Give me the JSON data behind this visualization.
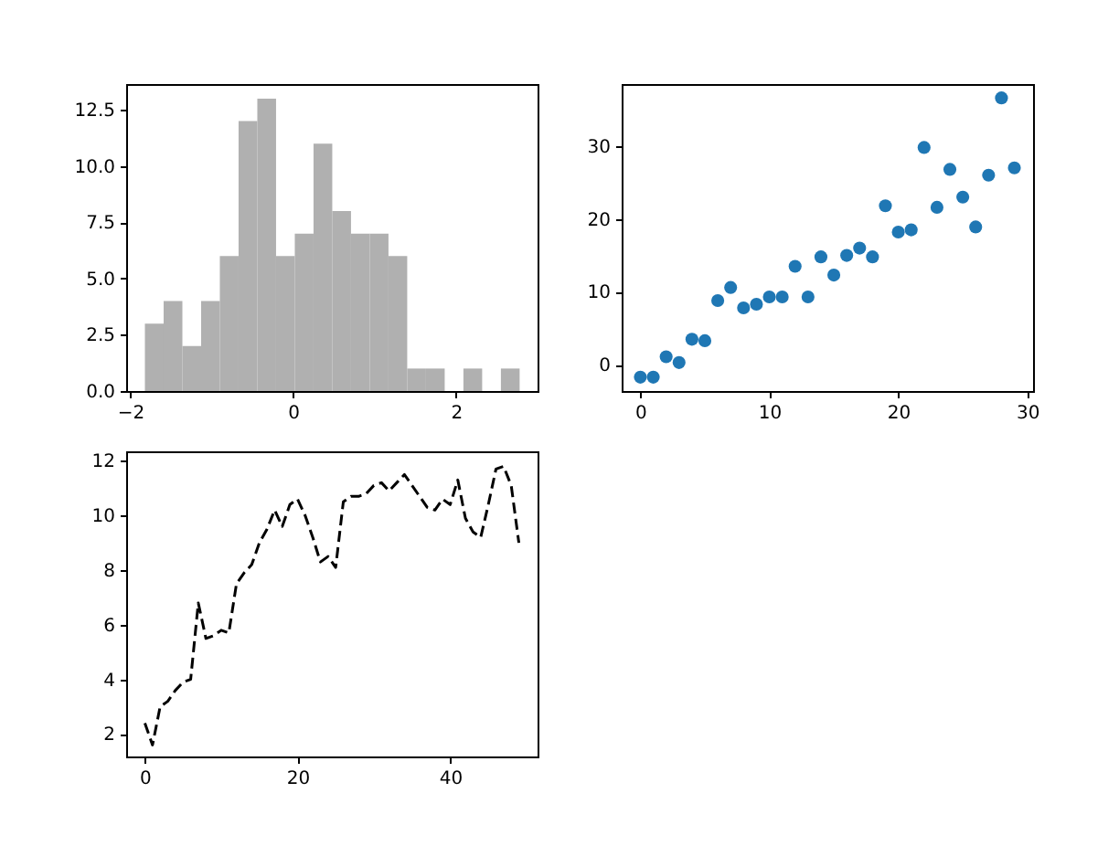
{
  "chart_data": [
    {
      "type": "histogram",
      "color": "#b0b0b0",
      "bins": [
        -1.82,
        -1.59,
        -1.36,
        -1.13,
        -0.9,
        -0.67,
        -0.44,
        -0.21,
        0.02,
        0.25,
        0.48,
        0.71,
        0.94,
        1.17,
        1.4,
        1.63,
        1.86,
        2.09,
        2.32,
        2.55,
        2.78
      ],
      "values": [
        3,
        4,
        2,
        4,
        6,
        12,
        13,
        6,
        7,
        11,
        8,
        7,
        7,
        6,
        1,
        1,
        0,
        1,
        0,
        1
      ],
      "xlim": [
        -2.05,
        3.0
      ],
      "xticks": [
        {
          "value": -2,
          "label": "−2"
        },
        0,
        2
      ],
      "ylim": [
        0,
        13.65
      ],
      "yticks": [
        {
          "value": 0,
          "label": "0.0"
        },
        {
          "value": 2.5,
          "label": "2.5"
        },
        {
          "value": 5,
          "label": "5.0"
        },
        {
          "value": 7.5,
          "label": "7.5"
        },
        {
          "value": 10,
          "label": "10.0"
        },
        {
          "value": 12.5,
          "label": "12.5"
        }
      ]
    },
    {
      "type": "scatter",
      "marker": "circle",
      "x": [
        0,
        1,
        2,
        3,
        4,
        5,
        6,
        7,
        8,
        9,
        10,
        11,
        12,
        13,
        14,
        15,
        16,
        17,
        18,
        19,
        20,
        21,
        22,
        23,
        24,
        25,
        26,
        27,
        28,
        29
      ],
      "series": [
        {
          "color": "#1f77b4",
          "values": [
            -1.7,
            -1.7,
            1.1,
            0.3,
            3.5,
            3.3,
            8.8,
            10.6,
            7.8,
            8.3,
            9.3,
            9.3,
            13.5,
            9.3,
            14.8,
            12.3,
            15,
            16,
            14.8,
            21.8,
            18.2,
            18.5,
            29.8,
            21.6,
            26.8,
            23,
            18.9,
            26,
            36.6,
            27
          ]
        }
      ],
      "xlim": [
        -1.45,
        30.45
      ],
      "xticks": [
        0,
        10,
        20,
        30
      ],
      "ylim": [
        -3.6,
        38.5
      ],
      "yticks": [
        0,
        10,
        20,
        30
      ]
    },
    {
      "type": "line",
      "line_style": "dashed",
      "x": [
        0,
        1,
        2,
        3,
        4,
        5,
        6,
        7,
        8,
        9,
        10,
        11,
        12,
        13,
        14,
        15,
        16,
        17,
        18,
        19,
        20,
        21,
        22,
        23,
        24,
        25,
        26,
        27,
        28,
        29,
        30,
        31,
        32,
        33,
        34,
        35,
        36,
        37,
        38,
        39,
        40,
        41,
        42,
        43,
        44,
        45,
        46,
        47,
        48,
        49
      ],
      "series": [
        {
          "color": "#000000",
          "values": [
            2.4,
            1.6,
            3.0,
            3.2,
            3.6,
            3.9,
            4.0,
            6.8,
            5.5,
            5.6,
            5.8,
            5.7,
            7.5,
            7.9,
            8.2,
            9.0,
            9.5,
            10.2,
            9.6,
            10.4,
            10.6,
            10.0,
            9.2,
            8.3,
            8.5,
            8.1,
            10.5,
            10.7,
            10.7,
            10.8,
            11.1,
            11.2,
            10.9,
            11.2,
            11.5,
            11.1,
            10.7,
            10.3,
            10.2,
            10.6,
            10.4,
            11.3,
            9.9,
            9.4,
            9.2,
            10.4,
            11.7,
            11.8,
            11.1,
            9.0
          ]
        }
      ],
      "xlim": [
        -2.45,
        51.45
      ],
      "xticks": [
        0,
        20,
        40
      ],
      "ylim": [
        1.18,
        12.35
      ],
      "yticks": [
        2,
        4,
        6,
        8,
        10,
        12
      ]
    }
  ]
}
